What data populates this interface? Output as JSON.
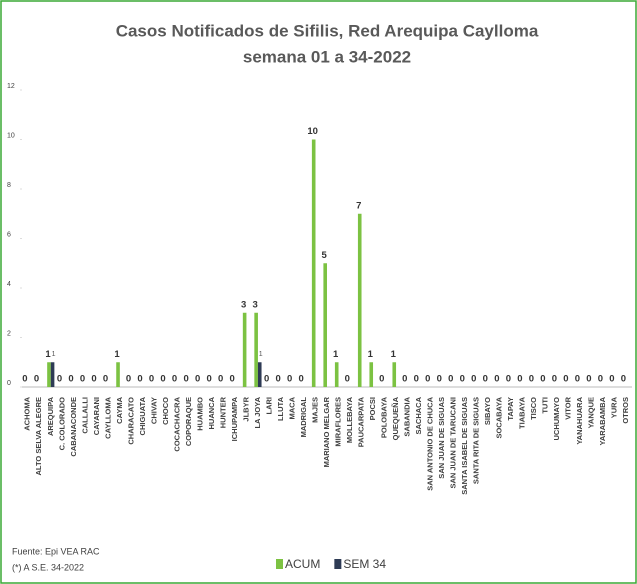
{
  "chart_data": {
    "type": "bar",
    "title": "Casos Notificados de Sifilis, Red Arequipa Caylloma",
    "subtitle": "semana 01 a 34-2022",
    "categories": [
      "ACHOMA",
      "ALTO SELVA ALEGRE",
      "AREQUIPA",
      "C. COLORADO",
      "CABANACONDE",
      "CALLALLI",
      "CAYARANI",
      "CAYLLOMA",
      "CAYMA",
      "CHARACATO",
      "CHIGUATA",
      "CHIVAY",
      "CHOCO",
      "COCACHACRA",
      "COPORAQUE",
      "HUAMBO",
      "HUANCA",
      "HUNTER",
      "ICHUPAMPA",
      "JLBYR",
      "LA JOYA",
      "LARI",
      "LLUTA",
      "MACA",
      "MADRIGAL",
      "MAJES",
      "MARIANO MELGAR",
      "MIRAFLORES",
      "MOLLEBAYA",
      "PAUCARPATA",
      "POCSI",
      "POLOBAYA",
      "QUEQUEÑA",
      "SABANDIA",
      "SACHACA",
      "SAN ANTONIO DE CHUCA",
      "SAN JUAN DE SIGUAS",
      "SAN JUAN DE TARUCANI",
      "SANTA ISABEL DE SIGUAS",
      "SANTA RITA DE SIGUAS",
      "SIBAYO",
      "SOCABAYA",
      "TAPAY",
      "TIABAYA",
      "TISCO",
      "TUTI",
      "UCHUMAYO",
      "VITOR",
      "YANAHUARA",
      "YANQUE",
      "YARABAMBA",
      "YURA",
      "OTROS"
    ],
    "series": [
      {
        "name": "ACUM",
        "color": "#7cc242",
        "label_zeros": true,
        "values": [
          0,
          0,
          1,
          0,
          0,
          0,
          0,
          0,
          1,
          0,
          0,
          0,
          0,
          0,
          0,
          0,
          0,
          0,
          0,
          3,
          3,
          0,
          0,
          0,
          0,
          10,
          5,
          1,
          0,
          7,
          1,
          0,
          1,
          0,
          0,
          0,
          0,
          0,
          0,
          0,
          0,
          0,
          0,
          0,
          0,
          0,
          0,
          0,
          0,
          0,
          0,
          0,
          0
        ]
      },
      {
        "name": "SEM 34",
        "color": "#2e3b55",
        "label_zeros": false,
        "values": [
          0,
          0,
          1,
          0,
          0,
          0,
          0,
          0,
          0,
          0,
          0,
          0,
          0,
          0,
          0,
          0,
          0,
          0,
          0,
          0,
          1,
          0,
          0,
          0,
          0,
          0,
          0,
          0,
          0,
          0,
          0,
          0,
          0,
          0,
          0,
          0,
          0,
          0,
          0,
          0,
          0,
          0,
          0,
          0,
          0,
          0,
          0,
          0,
          0,
          0,
          0,
          0,
          0
        ]
      }
    ],
    "ylim": [
      0,
      12
    ],
    "yticks": [
      0,
      2,
      4,
      6,
      8,
      10,
      12
    ],
    "grid": false,
    "source": [
      "Fuente: Epi VEA RAC",
      "(*) A S.E. 34-2022"
    ]
  }
}
